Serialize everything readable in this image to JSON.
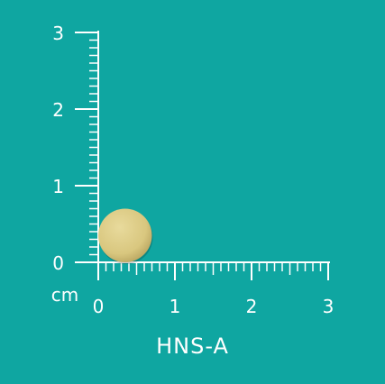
{
  "ruler": {
    "unit_label": "cm",
    "x_ticks": [
      "0",
      "1",
      "2",
      "3"
    ],
    "y_ticks": [
      "0",
      "1",
      "2",
      "3"
    ],
    "range_cm": [
      0,
      3
    ]
  },
  "pill": {
    "center_cm": [
      0.35,
      0.35
    ],
    "diameter_cm": 0.7,
    "color": "#d9c77f",
    "imprint": ""
  },
  "product_name": "HNS-A",
  "colors": {
    "background": "#0fa6a1",
    "ruler": "#ffffff",
    "pill": "#d9c77f"
  }
}
